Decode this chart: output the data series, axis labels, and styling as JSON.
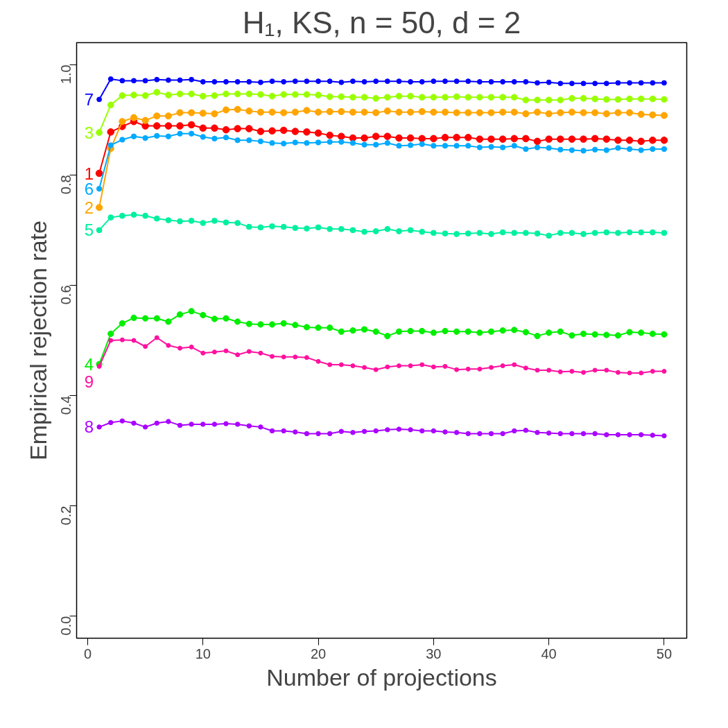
{
  "chart_data": {
    "type": "line",
    "title": "H₁, KS, n = 50, d = 2",
    "xlabel": "Number of projections",
    "ylabel": "Empirical rejection rate",
    "x": [
      1,
      2,
      3,
      4,
      5,
      6,
      7,
      8,
      9,
      10,
      11,
      12,
      13,
      14,
      15,
      16,
      17,
      18,
      19,
      20,
      21,
      22,
      23,
      24,
      25,
      26,
      27,
      28,
      29,
      30,
      31,
      32,
      33,
      34,
      35,
      36,
      37,
      38,
      39,
      40,
      41,
      42,
      43,
      44,
      45,
      46,
      47,
      48,
      49,
      50
    ],
    "xlim": [
      -0.96,
      51.96
    ],
    "xticks": [
      0,
      10,
      20,
      30,
      40,
      50
    ],
    "ylim": [
      -0.04,
      1.04
    ],
    "yticks": [
      {
        "value": 0,
        "label": "0.0"
      },
      {
        "value": 0.2,
        "label": "0.2"
      },
      {
        "value": 0.4,
        "label": "0.4"
      },
      {
        "value": 0.6,
        "label": "0.6"
      },
      {
        "value": 0.8,
        "label": "0.8"
      },
      {
        "value": 1,
        "label": "1.0"
      }
    ],
    "grid": false,
    "marker": "circle",
    "line_style": "solid",
    "series": [
      {
        "name": "1",
        "color": "#ff0000",
        "values": [
          0.803,
          0.878,
          0.888,
          0.897,
          0.889,
          0.889,
          0.889,
          0.889,
          0.891,
          0.885,
          0.885,
          0.882,
          0.884,
          0.884,
          0.879,
          0.88,
          0.881,
          0.879,
          0.878,
          0.876,
          0.872,
          0.87,
          0.867,
          0.867,
          0.87,
          0.87,
          0.867,
          0.867,
          0.866,
          0.866,
          0.868,
          0.868,
          0.868,
          0.865,
          0.865,
          0.865,
          0.866,
          0.866,
          0.861,
          0.865,
          0.865,
          0.865,
          0.865,
          0.866,
          0.865,
          0.863,
          0.863,
          0.861,
          0.863,
          0.863
        ]
      },
      {
        "name": "2",
        "color": "#ffa500",
        "values": [
          0.741,
          0.848,
          0.897,
          0.904,
          0.899,
          0.907,
          0.907,
          0.913,
          0.913,
          0.912,
          0.911,
          0.918,
          0.919,
          0.916,
          0.914,
          0.914,
          0.913,
          0.914,
          0.917,
          0.914,
          0.915,
          0.915,
          0.914,
          0.914,
          0.913,
          0.916,
          0.914,
          0.914,
          0.915,
          0.914,
          0.914,
          0.913,
          0.913,
          0.913,
          0.913,
          0.914,
          0.914,
          0.911,
          0.914,
          0.911,
          0.913,
          0.914,
          0.913,
          0.913,
          0.911,
          0.913,
          0.913,
          0.91,
          0.909,
          0.908
        ]
      },
      {
        "name": "3",
        "color": "#99ff00",
        "values": [
          0.877,
          0.927,
          0.944,
          0.945,
          0.944,
          0.95,
          0.945,
          0.947,
          0.947,
          0.943,
          0.944,
          0.947,
          0.947,
          0.947,
          0.946,
          0.943,
          0.946,
          0.946,
          0.946,
          0.945,
          0.942,
          0.942,
          0.941,
          0.941,
          0.939,
          0.941,
          0.943,
          0.943,
          0.941,
          0.941,
          0.941,
          0.942,
          0.941,
          0.941,
          0.941,
          0.941,
          0.941,
          0.936,
          0.936,
          0.936,
          0.936,
          0.939,
          0.939,
          0.938,
          0.937,
          0.937,
          0.938,
          0.938,
          0.938,
          0.937
        ]
      },
      {
        "name": "4",
        "color": "#00ee00",
        "values": [
          0.457,
          0.512,
          0.531,
          0.541,
          0.54,
          0.54,
          0.534,
          0.547,
          0.553,
          0.546,
          0.539,
          0.54,
          0.534,
          0.53,
          0.529,
          0.529,
          0.531,
          0.528,
          0.524,
          0.523,
          0.523,
          0.516,
          0.518,
          0.52,
          0.516,
          0.508,
          0.516,
          0.517,
          0.517,
          0.514,
          0.517,
          0.516,
          0.516,
          0.514,
          0.516,
          0.518,
          0.519,
          0.515,
          0.508,
          0.514,
          0.516,
          0.509,
          0.512,
          0.511,
          0.51,
          0.509,
          0.515,
          0.514,
          0.512,
          0.511
        ]
      },
      {
        "name": "5",
        "color": "#00f0a0",
        "values": [
          0.7,
          0.723,
          0.726,
          0.728,
          0.726,
          0.721,
          0.718,
          0.716,
          0.717,
          0.713,
          0.717,
          0.714,
          0.713,
          0.706,
          0.705,
          0.707,
          0.706,
          0.704,
          0.703,
          0.705,
          0.702,
          0.702,
          0.7,
          0.697,
          0.698,
          0.702,
          0.698,
          0.7,
          0.697,
          0.695,
          0.694,
          0.693,
          0.694,
          0.695,
          0.693,
          0.696,
          0.695,
          0.695,
          0.694,
          0.69,
          0.695,
          0.695,
          0.693,
          0.695,
          0.696,
          0.695,
          0.696,
          0.696,
          0.696,
          0.695
        ]
      },
      {
        "name": "6",
        "color": "#00aaff",
        "values": [
          0.775,
          0.854,
          0.864,
          0.87,
          0.867,
          0.871,
          0.87,
          0.875,
          0.875,
          0.869,
          0.866,
          0.868,
          0.863,
          0.863,
          0.861,
          0.858,
          0.857,
          0.859,
          0.858,
          0.859,
          0.86,
          0.86,
          0.858,
          0.855,
          0.855,
          0.858,
          0.853,
          0.854,
          0.856,
          0.853,
          0.853,
          0.853,
          0.853,
          0.85,
          0.851,
          0.85,
          0.853,
          0.847,
          0.85,
          0.849,
          0.846,
          0.845,
          0.844,
          0.846,
          0.845,
          0.849,
          0.847,
          0.845,
          0.847,
          0.847
        ]
      },
      {
        "name": "7",
        "color": "#0000ff",
        "values": [
          0.937,
          0.974,
          0.971,
          0.971,
          0.971,
          0.973,
          0.972,
          0.972,
          0.973,
          0.969,
          0.969,
          0.969,
          0.969,
          0.969,
          0.968,
          0.97,
          0.969,
          0.97,
          0.97,
          0.97,
          0.97,
          0.968,
          0.97,
          0.969,
          0.97,
          0.97,
          0.97,
          0.969,
          0.969,
          0.97,
          0.97,
          0.97,
          0.97,
          0.969,
          0.969,
          0.969,
          0.969,
          0.969,
          0.967,
          0.968,
          0.966,
          0.966,
          0.966,
          0.966,
          0.966,
          0.967,
          0.967,
          0.967,
          0.967,
          0.967
        ]
      },
      {
        "name": "8",
        "color": "#aa00ff",
        "values": [
          0.343,
          0.351,
          0.354,
          0.35,
          0.343,
          0.35,
          0.353,
          0.346,
          0.348,
          0.348,
          0.348,
          0.349,
          0.348,
          0.345,
          0.343,
          0.336,
          0.336,
          0.334,
          0.331,
          0.331,
          0.331,
          0.335,
          0.333,
          0.335,
          0.336,
          0.338,
          0.339,
          0.338,
          0.336,
          0.336,
          0.334,
          0.333,
          0.331,
          0.331,
          0.331,
          0.331,
          0.336,
          0.337,
          0.333,
          0.332,
          0.331,
          0.331,
          0.331,
          0.331,
          0.329,
          0.329,
          0.329,
          0.329,
          0.328,
          0.327
        ]
      },
      {
        "name": "9",
        "color": "#ff10a0",
        "values": [
          0.453,
          0.5,
          0.501,
          0.5,
          0.489,
          0.505,
          0.491,
          0.486,
          0.488,
          0.477,
          0.479,
          0.481,
          0.474,
          0.48,
          0.477,
          0.471,
          0.47,
          0.47,
          0.469,
          0.462,
          0.456,
          0.456,
          0.454,
          0.451,
          0.447,
          0.452,
          0.454,
          0.454,
          0.456,
          0.452,
          0.453,
          0.447,
          0.448,
          0.448,
          0.451,
          0.454,
          0.456,
          0.45,
          0.446,
          0.446,
          0.443,
          0.444,
          0.442,
          0.446,
          0.446,
          0.442,
          0.441,
          0.441,
          0.444,
          0.444
        ]
      }
    ]
  }
}
